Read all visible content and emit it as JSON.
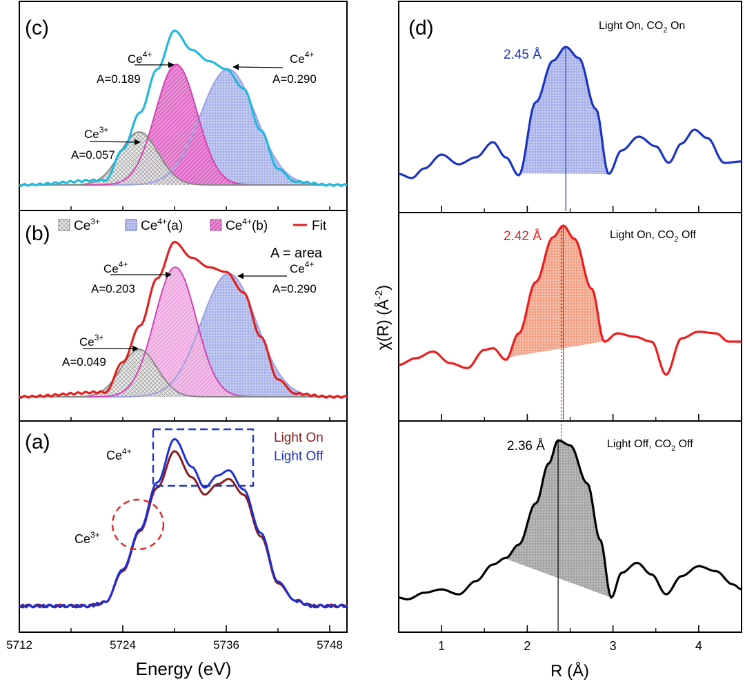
{
  "colors": {
    "frame": "#000000",
    "ce3_hatch": "#8a8a8a",
    "ce4a_fill": "#b9bfec",
    "ce4b_fill": "#e066c6",
    "fit_c": "#22b8dd",
    "fit_b": "#e12020",
    "light_on": "#8b1a1a",
    "light_off": "#1c2fd6",
    "box_blue": "#1f35c8",
    "circle_red": "#e02424",
    "d_top": "#1a33c4",
    "d_mid": "#ee1c1c",
    "d_mid_fill": "#f2a48a",
    "d_bot": "#000000",
    "d_bot_fill": "#a7a7a7"
  },
  "left": {
    "xlabel": "Energy (eV)",
    "xlim": [
      5712,
      5750
    ],
    "xticks": [
      5712,
      5724,
      5736,
      5748
    ],
    "xtick_labels": [
      "5712",
      "5724",
      "5736",
      "5748"
    ]
  },
  "right": {
    "xlabel": "R (Å)",
    "ylabel": "χ(R) (Å⁻²)",
    "xlim": [
      0.5,
      4.5
    ],
    "xticks": [
      1,
      2,
      3,
      4
    ],
    "xtick_labels": [
      "1",
      "2",
      "3",
      "4"
    ]
  },
  "panels": {
    "c": {
      "label": "(c)",
      "ce3": {
        "species": "Ce3+",
        "area": "A=0.057"
      },
      "ce4b": {
        "species": "Ce4+",
        "area": "A=0.189"
      },
      "ce4a": {
        "species": "Ce4+",
        "area": "A=0.290"
      }
    },
    "b": {
      "label": "(b)",
      "legend": {
        "ce3": "Ce3+",
        "ce4a": "Ce4+(a)",
        "ce4b": "Ce4+(b)",
        "fit": "Fit"
      },
      "area_note": "A = area",
      "ce3": {
        "species": "Ce3+",
        "area": "A=0.049"
      },
      "ce4b": {
        "species": "Ce4+",
        "area": "A=0.203"
      },
      "ce4a": {
        "species": "Ce4+",
        "area": "A=0.290"
      }
    },
    "a": {
      "label": "(a)",
      "legend": {
        "on": "Light On",
        "off": "Light Off"
      },
      "ce4": "Ce4+",
      "ce3": "Ce3+"
    },
    "d": {
      "label": "(d)",
      "rows": [
        {
          "condition": "Light On, CO2 On",
          "distance": "2.45 Å"
        },
        {
          "condition": "Light On, CO2 Off",
          "distance": "2.42 Å"
        },
        {
          "condition": "Light Off, CO2 Off",
          "distance": "2.36 Å"
        }
      ]
    }
  },
  "chart_data": [
    {
      "type": "area",
      "panel": "c",
      "title": "",
      "xlabel": "Energy (eV)",
      "xlim": [
        5712,
        5750
      ],
      "series": [
        {
          "name": "Ce3+",
          "peak": {
            "center": 5725.9,
            "height": 0.33,
            "width": 2.2
          }
        },
        {
          "name": "Ce4+(b)",
          "peak": {
            "center": 5730.2,
            "height": 0.75,
            "width": 2.4
          }
        },
        {
          "name": "Ce4+(a)",
          "peak": {
            "center": 5736.2,
            "height": 0.72,
            "width": 3.2
          }
        },
        {
          "name": "Fit",
          "x": [
            5712,
            5722,
            5724,
            5726,
            5728,
            5730,
            5732,
            5734,
            5736,
            5738,
            5740,
            5742,
            5744,
            5748,
            5750
          ],
          "y": [
            0.0,
            0.03,
            0.22,
            0.45,
            0.72,
            0.96,
            0.84,
            0.77,
            0.72,
            0.6,
            0.34,
            0.1,
            0.02,
            0.0,
            0.0
          ]
        }
      ],
      "annotations": [
        "Ce3+ A=0.057",
        "Ce4+ A=0.189",
        "Ce4+ A=0.290"
      ]
    },
    {
      "type": "area",
      "panel": "b",
      "title": "",
      "xlabel": "Energy (eV)",
      "xlim": [
        5712,
        5750
      ],
      "series": [
        {
          "name": "Ce3+",
          "peak": {
            "center": 5725.9,
            "height": 0.3,
            "width": 2.1
          }
        },
        {
          "name": "Ce4+(b)",
          "peak": {
            "center": 5730.1,
            "height": 0.82,
            "width": 2.4
          }
        },
        {
          "name": "Ce4+(a)",
          "peak": {
            "center": 5736.3,
            "height": 0.78,
            "width": 3.2
          }
        },
        {
          "name": "Fit",
          "x": [
            5712,
            5722,
            5724,
            5726,
            5728,
            5730,
            5732,
            5734,
            5736,
            5738,
            5740,
            5742,
            5744,
            5748,
            5750
          ],
          "y": [
            0.0,
            0.03,
            0.22,
            0.45,
            0.75,
            0.98,
            0.88,
            0.82,
            0.79,
            0.66,
            0.38,
            0.11,
            0.02,
            0.0,
            0.0
          ]
        }
      ],
      "legend": [
        "Ce3+",
        "Ce4+(a)",
        "Ce4+(b)",
        "Fit"
      ],
      "annotations": [
        "Ce3+ A=0.049",
        "Ce4+ A=0.203",
        "Ce4+ A=0.290",
        "A = area"
      ]
    },
    {
      "type": "line",
      "panel": "a",
      "title": "",
      "xlabel": "Energy (eV)",
      "xlim": [
        5712,
        5750
      ],
      "series": [
        {
          "name": "Light On",
          "x": [
            5712,
            5720,
            5722,
            5724,
            5726,
            5728,
            5730,
            5732,
            5733.5,
            5735,
            5736.3,
            5738,
            5740,
            5742,
            5744,
            5746,
            5750
          ],
          "y": [
            0.0,
            0.0,
            0.02,
            0.2,
            0.43,
            0.68,
            0.89,
            0.74,
            0.64,
            0.7,
            0.73,
            0.64,
            0.4,
            0.13,
            0.03,
            0.0,
            0.0
          ]
        },
        {
          "name": "Light Off",
          "x": [
            5712,
            5720,
            5722,
            5724,
            5726,
            5728,
            5730,
            5732,
            5733.5,
            5735,
            5736.3,
            5738,
            5740,
            5742,
            5744,
            5746,
            5750
          ],
          "y": [
            0.0,
            0.0,
            0.02,
            0.21,
            0.44,
            0.71,
            0.96,
            0.8,
            0.68,
            0.75,
            0.78,
            0.67,
            0.42,
            0.14,
            0.03,
            0.0,
            0.0
          ]
        }
      ],
      "legend": [
        "Light On",
        "Light Off"
      ],
      "annotations": [
        "Ce4+",
        "Ce3+"
      ]
    },
    {
      "type": "line",
      "panel": "d",
      "title": "",
      "xlabel": "R (Å)",
      "ylabel": "χ(R) (Å⁻²)",
      "xlim": [
        0.5,
        4.5
      ],
      "series": [
        {
          "name": "Light On, CO2 On",
          "peak_R": 2.45,
          "x": [
            0.5,
            0.65,
            0.8,
            1.0,
            1.2,
            1.4,
            1.6,
            1.75,
            1.9,
            2.1,
            2.3,
            2.45,
            2.6,
            2.8,
            2.95,
            3.1,
            3.3,
            3.5,
            3.65,
            3.8,
            3.95,
            4.1,
            4.3,
            4.5
          ],
          "y": [
            0.08,
            0.05,
            0.12,
            0.22,
            0.15,
            0.2,
            0.31,
            0.2,
            0.07,
            0.6,
            0.9,
            1.0,
            0.92,
            0.55,
            0.08,
            0.25,
            0.35,
            0.28,
            0.16,
            0.3,
            0.4,
            0.34,
            0.16,
            0.17
          ]
        },
        {
          "name": "Light On, CO2 Off",
          "peak_R": 2.42,
          "x": [
            0.5,
            0.7,
            0.9,
            1.1,
            1.3,
            1.5,
            1.6,
            1.75,
            1.9,
            2.1,
            2.3,
            2.42,
            2.55,
            2.75,
            2.9,
            3.05,
            3.25,
            3.45,
            3.62,
            3.8,
            4.0,
            4.2,
            4.35,
            4.5
          ],
          "y": [
            0.16,
            0.2,
            0.24,
            0.17,
            0.14,
            0.25,
            0.26,
            0.19,
            0.35,
            0.66,
            0.93,
            1.0,
            0.92,
            0.62,
            0.3,
            0.35,
            0.33,
            0.3,
            0.1,
            0.32,
            0.36,
            0.35,
            0.3,
            0.3
          ]
        },
        {
          "name": "Light Off, CO2 Off",
          "peak_R": 2.36,
          "x": [
            0.5,
            0.6,
            0.8,
            1.0,
            1.2,
            1.4,
            1.6,
            1.75,
            1.9,
            2.1,
            2.25,
            2.36,
            2.5,
            2.7,
            2.85,
            2.98,
            3.1,
            3.28,
            3.45,
            3.62,
            3.8,
            4.0,
            4.2,
            4.4,
            4.5
          ],
          "y": [
            0.05,
            0.04,
            0.08,
            0.1,
            0.07,
            0.15,
            0.25,
            0.29,
            0.37,
            0.62,
            0.86,
            1.0,
            0.97,
            0.74,
            0.4,
            0.05,
            0.2,
            0.26,
            0.19,
            0.07,
            0.18,
            0.24,
            0.21,
            0.13,
            0.1
          ]
        }
      ],
      "annotations": [
        "2.45 Å",
        "2.42 Å",
        "2.36 Å",
        "Light On, CO2 On",
        "Light On, CO2 Off",
        "Light Off, CO2 Off"
      ]
    }
  ]
}
